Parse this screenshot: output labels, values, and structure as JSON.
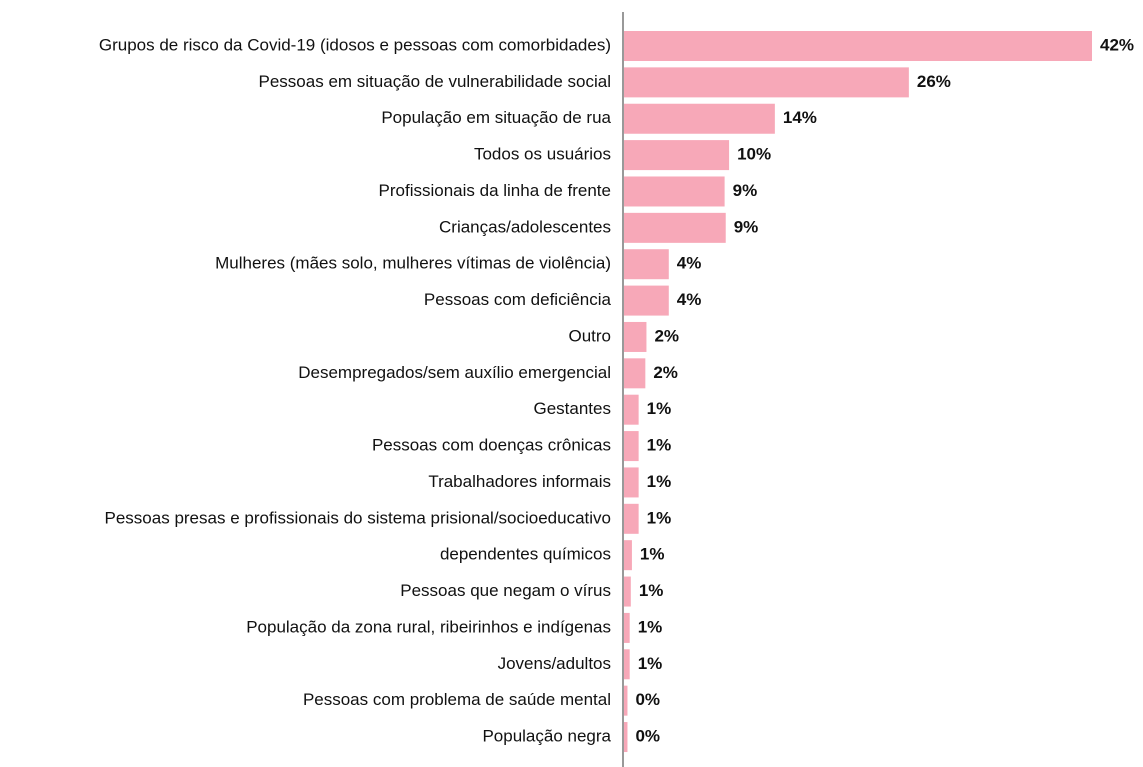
{
  "chart_data": {
    "type": "hbar",
    "categories": [
      "Grupos de risco da Covid-19 (idosos e pessoas com comorbidades)",
      "Pessoas em situação de vulnerabilidade social",
      "População em situação de rua",
      "Todos os usuários",
      "Profissionais da linha de frente",
      "Crianças/adolescentes",
      "Mulheres (mães solo, mulheres vítimas de violência)",
      "Pessoas com deficiência",
      "Outro",
      "Desempregados/sem auxílio emergencial",
      "Gestantes",
      "Pessoas com doenças crônicas",
      "Trabalhadores informais",
      "Pessoas presas e profissionais do sistema prisional/socioeducativo",
      "dependentes químicos",
      "Pessoas que negam o vírus",
      "População da zona rural, ribeirinhos e indígenas",
      "Jovens/adultos",
      "Pessoas com problema de saúde mental",
      "População negra"
    ],
    "values": [
      42,
      25.6,
      13.6,
      9.5,
      9.1,
      9.2,
      4.1,
      4.1,
      2.1,
      2.0,
      1.4,
      1.4,
      1.4,
      1.4,
      0.8,
      0.7,
      0.6,
      0.6,
      0.4,
      0.4
    ],
    "value_labels": [
      "42%",
      "26%",
      "14%",
      "10%",
      "9%",
      "9%",
      "4%",
      "4%",
      "2%",
      "2%",
      "1%",
      "1%",
      "1%",
      "1%",
      "1%",
      "1%",
      "1%",
      "1%",
      "0%",
      "0%"
    ],
    "color": "#f7a8b8",
    "xlim": [
      0,
      42
    ]
  }
}
